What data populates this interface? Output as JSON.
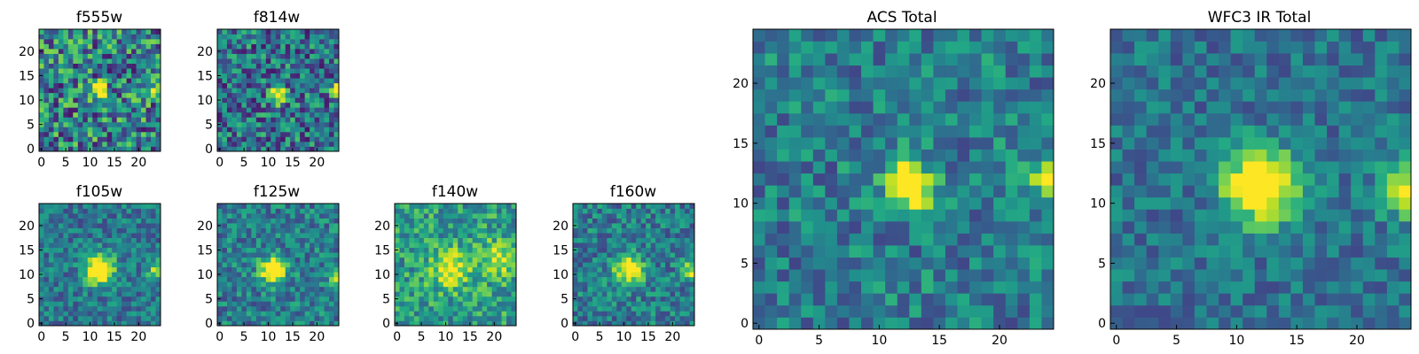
{
  "figure": {
    "type": "heatmap-grid",
    "colormap": "viridis",
    "grid_size": 25
  },
  "chart_data": [
    {
      "type": "heatmap",
      "title": "f555w",
      "xticks": [
        "0",
        "5",
        "10",
        "15",
        "20"
      ],
      "yticks": [
        "0",
        "5",
        "10",
        "15",
        "20"
      ],
      "xlim": [
        0,
        25
      ],
      "ylim": [
        0,
        25
      ],
      "sources": [
        {
          "x": 12,
          "y": 12,
          "amp": 1.0,
          "sigma": 1.0
        },
        {
          "x": 24,
          "y": 12,
          "amp": 0.6,
          "sigma": 0.8
        }
      ],
      "noise": 0.38,
      "base": 0.44,
      "seed": 11
    },
    {
      "type": "heatmap",
      "title": "f814w",
      "xticks": [
        "0",
        "5",
        "10",
        "15",
        "20"
      ],
      "yticks": [
        "0",
        "5",
        "10",
        "15",
        "20"
      ],
      "xlim": [
        0,
        25
      ],
      "ylim": [
        0,
        25
      ],
      "sources": [
        {
          "x": 12,
          "y": 11,
          "amp": 1.0,
          "sigma": 1.1
        },
        {
          "x": 24,
          "y": 12,
          "amp": 0.8,
          "sigma": 0.8
        }
      ],
      "noise": 0.32,
      "base": 0.38,
      "seed": 23
    },
    {
      "type": "heatmap",
      "title": "f105w",
      "xticks": [
        "0",
        "5",
        "10",
        "15",
        "20"
      ],
      "yticks": [
        "0",
        "5",
        "10",
        "15",
        "20"
      ],
      "xlim": [
        0,
        25
      ],
      "ylim": [
        0,
        25
      ],
      "sources": [
        {
          "x": 12,
          "y": 11,
          "amp": 0.95,
          "sigma": 2.0
        },
        {
          "x": 24,
          "y": 11,
          "amp": 0.55,
          "sigma": 1.3
        }
      ],
      "noise": 0.2,
      "base": 0.4,
      "seed": 37
    },
    {
      "type": "heatmap",
      "title": "f125w",
      "xticks": [
        "0",
        "5",
        "10",
        "15",
        "20"
      ],
      "yticks": [
        "0",
        "5",
        "10",
        "15",
        "20"
      ],
      "xlim": [
        0,
        25
      ],
      "ylim": [
        0,
        25
      ],
      "sources": [
        {
          "x": 11,
          "y": 11,
          "amp": 0.85,
          "sigma": 1.8
        },
        {
          "x": 24,
          "y": 10,
          "amp": 0.5,
          "sigma": 1.2
        }
      ],
      "noise": 0.22,
      "base": 0.42,
      "seed": 41
    },
    {
      "type": "heatmap",
      "title": "f140w",
      "xticks": [
        "0",
        "5",
        "10",
        "15",
        "20"
      ],
      "yticks": [
        "0",
        "5",
        "10",
        "15",
        "20"
      ],
      "xlim": [
        0,
        25
      ],
      "ylim": [
        0,
        25
      ],
      "sources": [
        {
          "x": 11,
          "y": 11,
          "amp": 0.5,
          "sigma": 2.6
        },
        {
          "x": 21,
          "y": 13,
          "amp": 0.45,
          "sigma": 2.5
        }
      ],
      "noise": 0.24,
      "base": 0.55,
      "seed": 53
    },
    {
      "type": "heatmap",
      "title": "f160w",
      "xticks": [
        "0",
        "5",
        "10",
        "15",
        "20"
      ],
      "yticks": [
        "0",
        "5",
        "10",
        "15",
        "20"
      ],
      "xlim": [
        0,
        25
      ],
      "ylim": [
        0,
        25
      ],
      "sources": [
        {
          "x": 11,
          "y": 11,
          "amp": 0.75,
          "sigma": 2.0
        },
        {
          "x": 24,
          "y": 11,
          "amp": 0.55,
          "sigma": 1.3
        }
      ],
      "noise": 0.22,
      "base": 0.42,
      "seed": 67
    },
    {
      "type": "heatmap",
      "title": "ACS Total",
      "xticks": [
        "0",
        "5",
        "10",
        "15",
        "20"
      ],
      "yticks": [
        "0",
        "5",
        "10",
        "15",
        "20"
      ],
      "xlim": [
        0,
        25
      ],
      "ylim": [
        0,
        25
      ],
      "sources": [
        {
          "x": 12.5,
          "y": 11.5,
          "amp": 1.0,
          "sigma": 1.3
        },
        {
          "x": 24,
          "y": 12,
          "amp": 0.75,
          "sigma": 1.0
        }
      ],
      "noise": 0.22,
      "base": 0.42,
      "seed": 79
    },
    {
      "type": "heatmap",
      "title": "WFC3 IR Total",
      "xticks": [
        "0",
        "5",
        "10",
        "15",
        "20"
      ],
      "yticks": [
        "0",
        "5",
        "10",
        "15",
        "20"
      ],
      "xlim": [
        0,
        25
      ],
      "ylim": [
        0,
        25
      ],
      "sources": [
        {
          "x": 12,
          "y": 11.5,
          "amp": 1.0,
          "sigma": 2.0
        },
        {
          "x": 24,
          "y": 11,
          "amp": 0.7,
          "sigma": 1.4
        }
      ],
      "noise": 0.17,
      "base": 0.38,
      "seed": 97
    }
  ]
}
